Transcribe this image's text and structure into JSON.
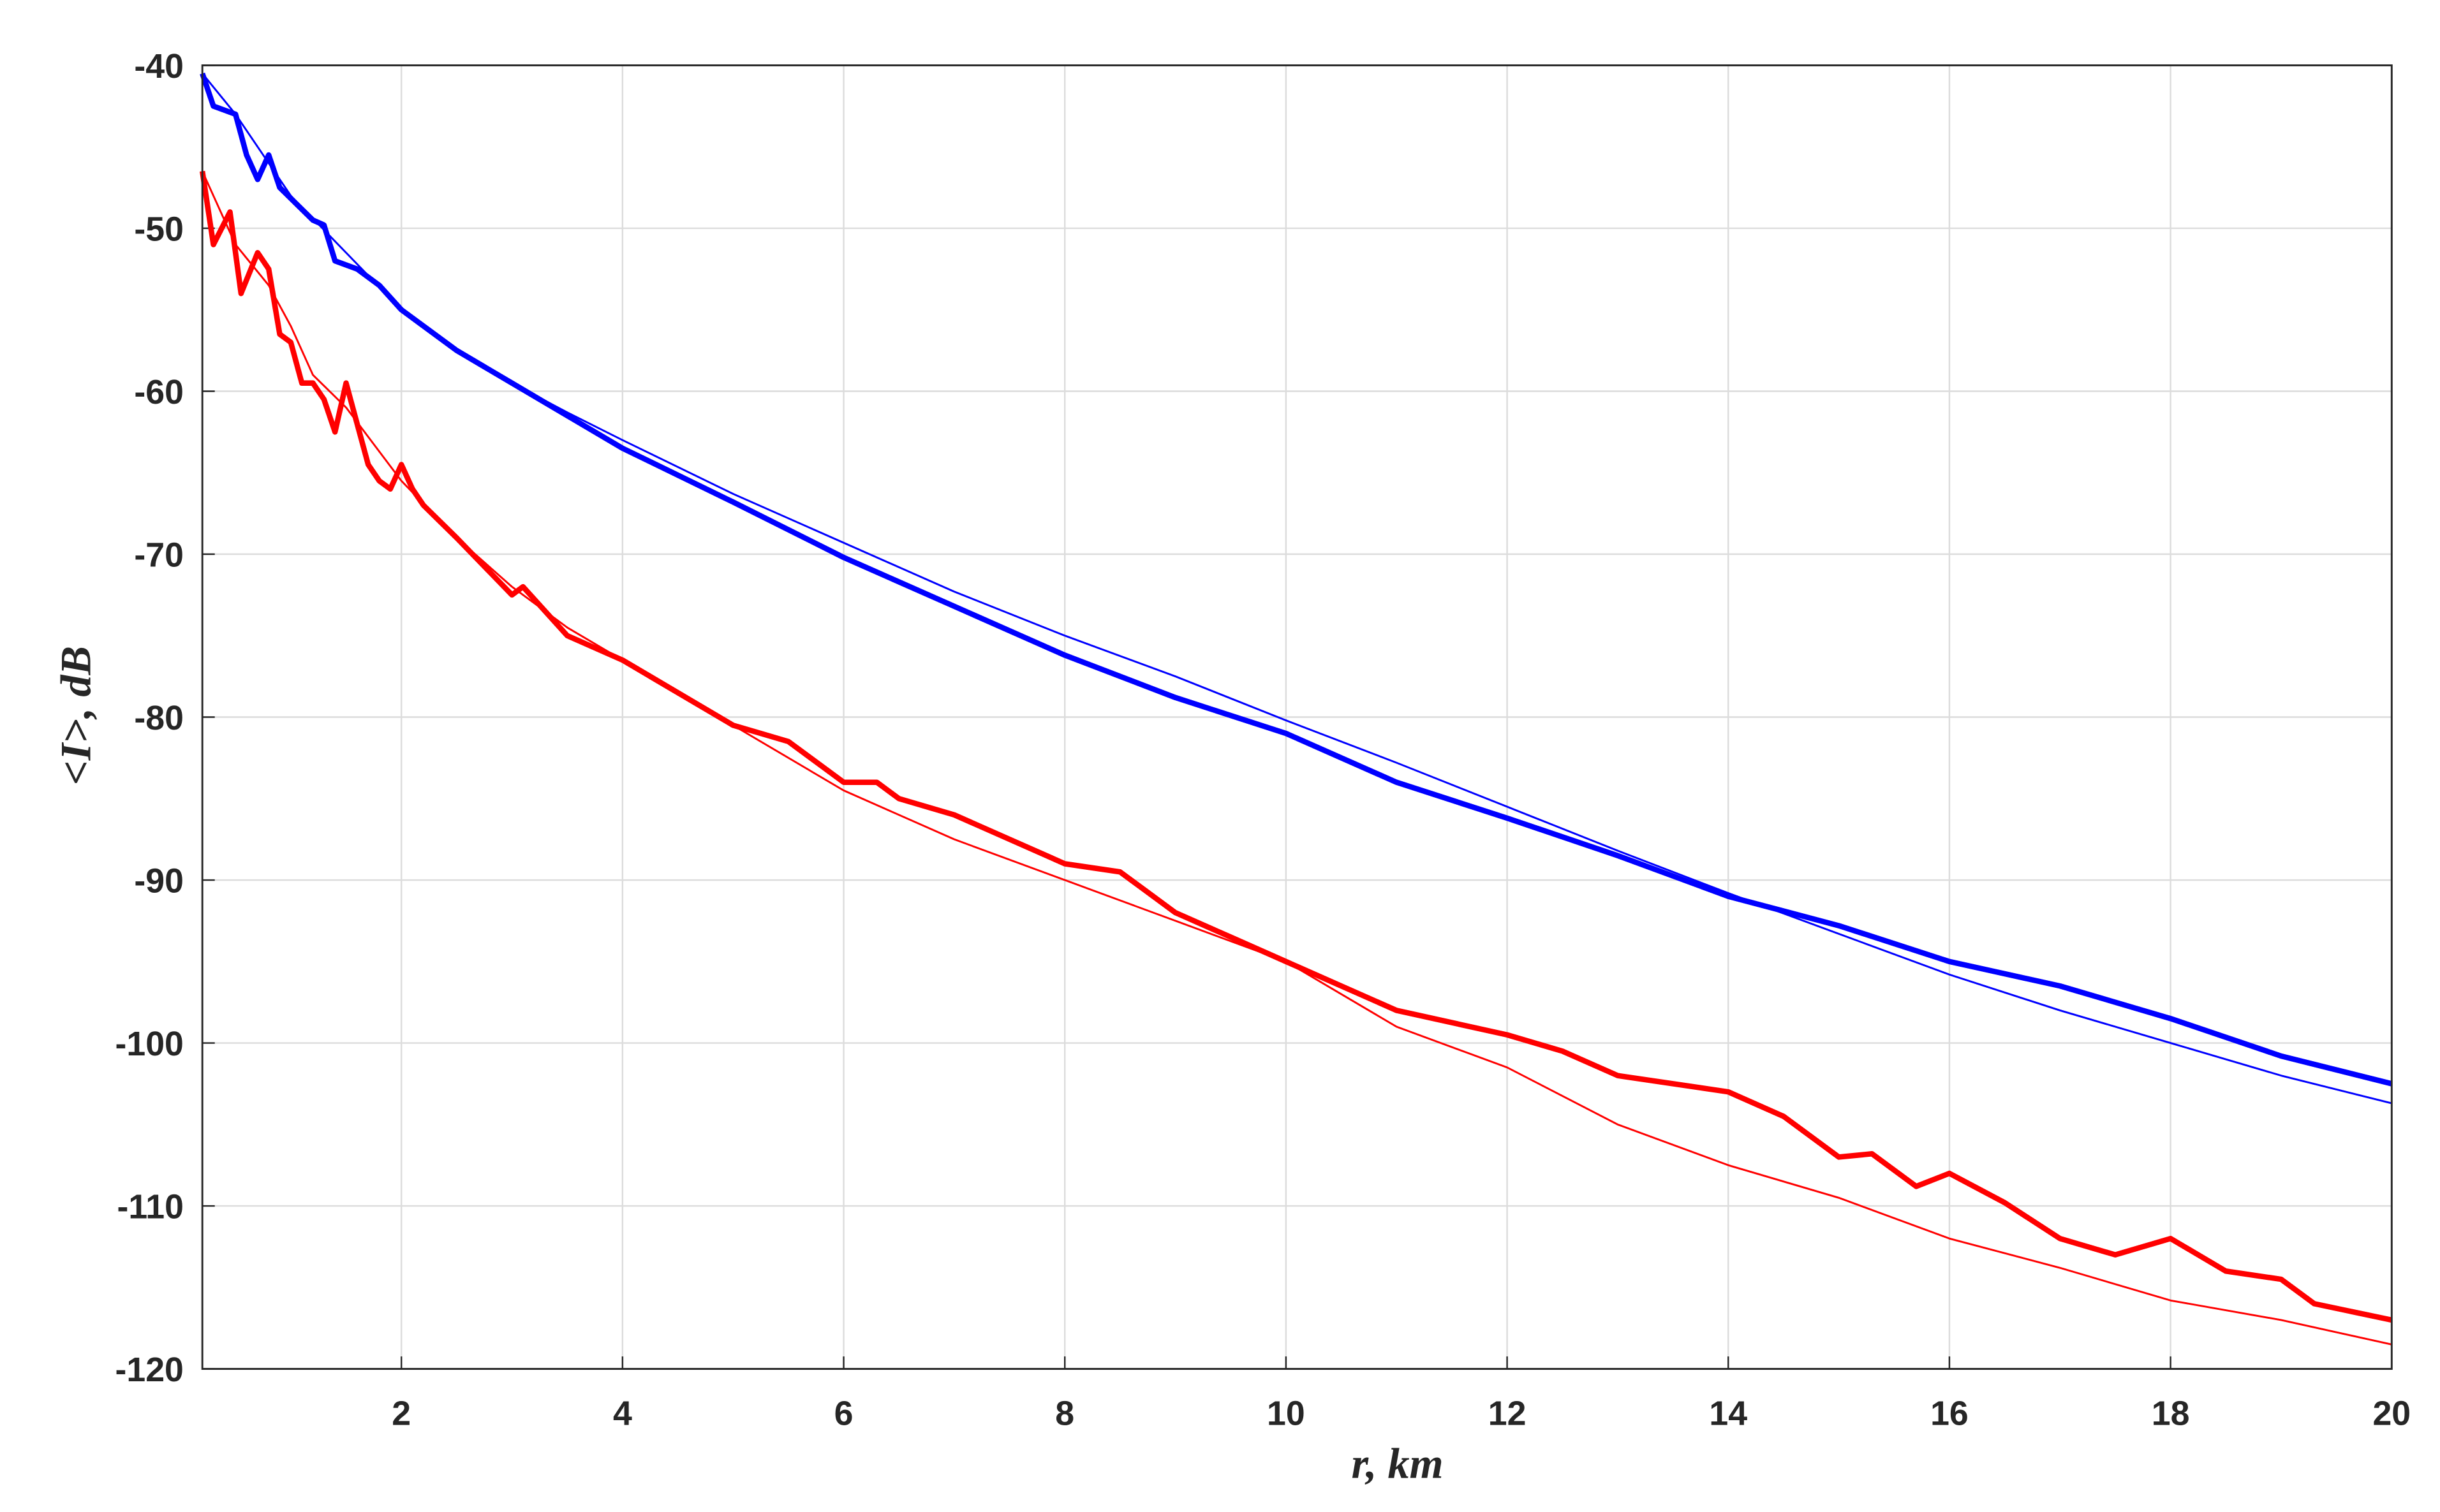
{
  "chart_data": {
    "type": "line",
    "x_label": "r, km",
    "y_label": "<I>, dB",
    "xlim": [
      0.2,
      20
    ],
    "ylim": [
      -120,
      -40
    ],
    "xticks": [
      2,
      4,
      6,
      8,
      10,
      12,
      14,
      16,
      18,
      20
    ],
    "yticks": [
      -120,
      -110,
      -100,
      -90,
      -80,
      -70,
      -60,
      -50,
      -40
    ],
    "grid": true,
    "series": [
      {
        "color": "#0000ff",
        "width": 3.5,
        "x": [
          0.2,
          0.3,
          0.5,
          0.6,
          0.7,
          0.8,
          0.9,
          1.2,
          1.3,
          1.4,
          1.6,
          1.8,
          2.0,
          2.5,
          3,
          3.5,
          4,
          5,
          6,
          7,
          8,
          9,
          10,
          11,
          12,
          13,
          14,
          15,
          16,
          17,
          18,
          19,
          20
        ],
        "values": [
          -40.5,
          -42.5,
          -43,
          -45.5,
          -47,
          -45.5,
          -47.5,
          -49.5,
          -49.8,
          -52,
          -52.5,
          -53.5,
          -55,
          -57.5,
          -59.5,
          -61.5,
          -63.5,
          -66.8,
          -70.2,
          -73.2,
          -76.2,
          -78.8,
          -81,
          -84,
          -86.2,
          -88.5,
          -91,
          -92.8,
          -95,
          -96.5,
          -98.5,
          -100.8,
          -102.5
        ]
      },
      {
        "color": "#0000ff",
        "width": 1.2,
        "x": [
          0.2,
          0.5,
          0.8,
          1.0,
          1.5,
          2,
          2.5,
          3,
          3.5,
          4,
          5,
          6,
          7,
          8,
          9,
          10,
          11,
          12,
          13,
          14,
          15,
          16,
          17,
          18,
          19,
          20
        ],
        "values": [
          -40.5,
          -43,
          -46,
          -48,
          -51.5,
          -55,
          -57.5,
          -59.5,
          -61.3,
          -63,
          -66.3,
          -69.3,
          -72.3,
          -75,
          -77.5,
          -80.2,
          -82.8,
          -85.5,
          -88.2,
          -90.8,
          -93.3,
          -95.8,
          -98,
          -100,
          -102,
          -103.7
        ]
      },
      {
        "color": "#ff0000",
        "width": 3.5,
        "x": [
          0.2,
          0.3,
          0.45,
          0.55,
          0.7,
          0.8,
          0.9,
          1.0,
          1.1,
          1.2,
          1.3,
          1.4,
          1.5,
          1.6,
          1.7,
          1.8,
          1.9,
          2.0,
          2.1,
          2.2,
          2.5,
          3,
          3.1,
          3.5,
          4,
          4.5,
          5,
          5.5,
          6,
          6.3,
          6.5,
          7,
          7.5,
          8,
          8.5,
          9,
          9.5,
          10,
          10.5,
          11,
          12,
          12.5,
          13,
          14,
          14.5,
          15,
          15.3,
          15.7,
          16,
          16.5,
          17,
          17.5,
          18,
          18.5,
          19,
          19.3,
          20
        ],
        "values": [
          -46.5,
          -51,
          -49,
          -54,
          -51.5,
          -52.5,
          -56.5,
          -57,
          -59.5,
          -59.5,
          -60.5,
          -62.5,
          -59.5,
          -62,
          -64.5,
          -65.5,
          -66,
          -64.5,
          -66,
          -67,
          -69,
          -72.5,
          -72,
          -75,
          -76.5,
          -78.5,
          -80.5,
          -81.5,
          -84,
          -84,
          -85,
          -86,
          -87.5,
          -89,
          -89.5,
          -92,
          -93.5,
          -95,
          -96.5,
          -98,
          -99.5,
          -100.5,
          -102,
          -103,
          -104.5,
          -107,
          -106.8,
          -108.8,
          -108,
          -109.8,
          -112,
          -113,
          -112,
          -114,
          -114.5,
          -116,
          -117
        ]
      },
      {
        "color": "#ff0000",
        "width": 1.2,
        "x": [
          0.2,
          0.5,
          0.8,
          1.0,
          1.2,
          1.5,
          2,
          2.5,
          3,
          3.5,
          4,
          5,
          6,
          7,
          8,
          9,
          10,
          11,
          12,
          13,
          14,
          15,
          16,
          17,
          18,
          19,
          20
        ],
        "values": [
          -46.5,
          -51,
          -53.5,
          -56,
          -59,
          -61,
          -65.5,
          -69,
          -72,
          -74.5,
          -76.5,
          -80.5,
          -84.5,
          -87.5,
          -90,
          -92.5,
          -95,
          -99,
          -101.5,
          -105,
          -107.5,
          -109.5,
          -112,
          -113.8,
          -115.8,
          -117,
          -118.5
        ]
      }
    ]
  }
}
